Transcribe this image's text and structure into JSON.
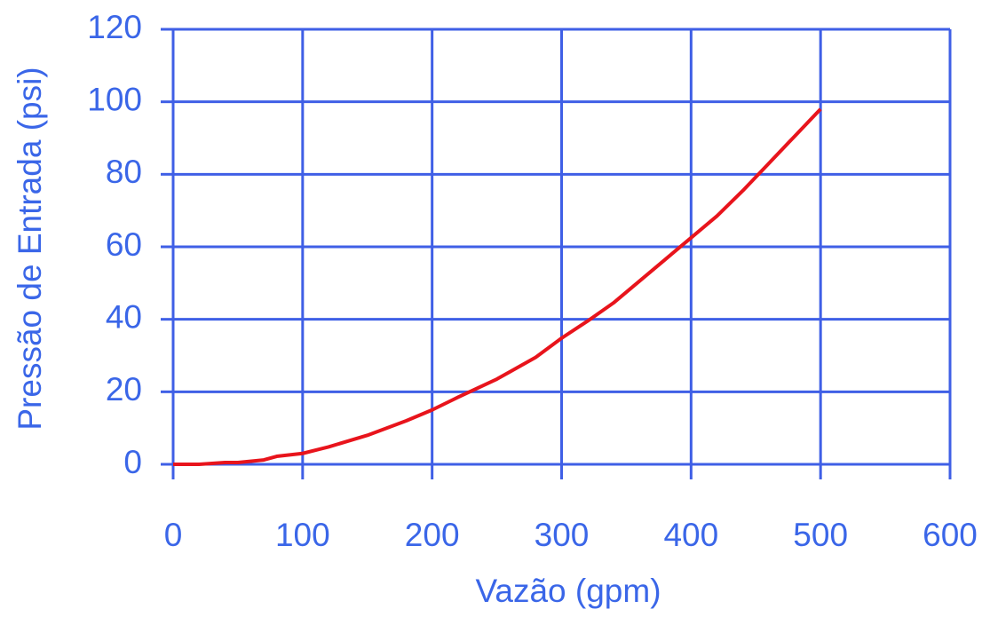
{
  "chart_data": {
    "type": "line",
    "xlabel": "Vazão (gpm)",
    "ylabel": "Pressão de Entrada (psi)",
    "x": [
      0,
      20,
      40,
      50,
      70,
      80,
      100,
      120,
      150,
      180,
      200,
      220,
      250,
      260,
      280,
      300,
      320,
      340,
      350,
      360,
      380,
      400,
      420,
      440,
      460,
      480,
      500
    ],
    "series": [
      {
        "color": "#e8141c",
        "values": [
          0,
          0,
          0.5,
          0.5,
          1.2,
          2.2,
          3,
          4.8,
          8,
          12,
          15,
          18.5,
          23.5,
          25.5,
          29.5,
          34.8,
          39.5,
          44.5,
          47.5,
          50.5,
          56.5,
          62.5,
          68.5,
          75.5,
          83,
          90.5,
          98
        ]
      }
    ],
    "xlim": [
      0,
      600
    ],
    "xticks": [
      0,
      100,
      200,
      300,
      400,
      500,
      600
    ],
    "ylim": [
      0,
      120
    ],
    "yticks": [
      0,
      20,
      40,
      60,
      80,
      100,
      120
    ],
    "grid": true,
    "axis_color": "#3f5fe6",
    "text_color": "#3a66e8"
  }
}
